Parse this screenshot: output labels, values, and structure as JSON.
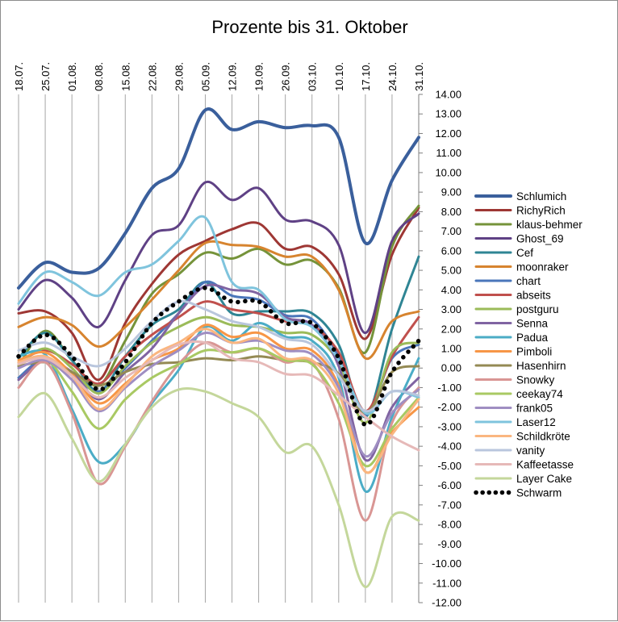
{
  "chart_data": {
    "type": "line",
    "title": "Prozente bis 31. Oktober",
    "xlabel": "",
    "ylabel": "",
    "categories": [
      "18.07.",
      "25.07.",
      "01.08.",
      "08.08.",
      "15.08.",
      "22.08.",
      "29.08.",
      "05.09.",
      "12.09.",
      "19.09.",
      "26.09.",
      "03.10.",
      "10.10.",
      "17.10.",
      "24.10.",
      "31.10."
    ],
    "y_ticks": [
      "14.00",
      "13.00",
      "12.00",
      "11.00",
      "10.00",
      "9.00",
      "8.00",
      "7.00",
      "6.00",
      "5.00",
      "4.00",
      "3.00",
      "2.00",
      "1.00",
      "0.00",
      "-1.00",
      "-2.00",
      "-3.00",
      "-4.00",
      "-5.00",
      "-6.00",
      "-7.00",
      "-8.00",
      "-9.00",
      "-10.00",
      "-11.00",
      "-12.00"
    ],
    "ylim": [
      -12,
      14
    ],
    "grid": "vertical",
    "legend_position": "right",
    "series": [
      {
        "name": "Schlumich",
        "color": "#3a5f9c",
        "width": 4,
        "values": [
          4.1,
          5.4,
          4.9,
          5.1,
          6.9,
          9.2,
          10.2,
          13.2,
          12.2,
          12.6,
          12.3,
          12.4,
          11.8,
          6.4,
          9.6,
          11.8
        ]
      },
      {
        "name": "RichyRich",
        "color": "#9e3734",
        "width": 3,
        "values": [
          2.8,
          2.9,
          1.8,
          -0.6,
          2.3,
          4.3,
          5.8,
          6.5,
          7.1,
          7.4,
          6.1,
          6.2,
          4.8,
          1.5,
          5.8,
          8.2
        ]
      },
      {
        "name": "klaus-behmer",
        "color": "#75933a",
        "width": 3,
        "values": [
          0.1,
          1.9,
          0.4,
          -0.9,
          1.4,
          3.8,
          4.8,
          5.9,
          5.6,
          6.1,
          5.3,
          5.5,
          4.1,
          0.8,
          6.2,
          8.3
        ]
      },
      {
        "name": "Ghost_69",
        "color": "#5f4185",
        "width": 3,
        "values": [
          3.0,
          4.5,
          3.6,
          2.1,
          4.5,
          6.8,
          7.3,
          9.5,
          8.6,
          9.2,
          7.6,
          7.5,
          6.3,
          1.8,
          6.5,
          7.9
        ]
      },
      {
        "name": "Cef",
        "color": "#2f8594",
        "width": 3,
        "values": [
          0.5,
          1.8,
          0.4,
          -1.2,
          0.6,
          2.2,
          3.0,
          4.4,
          2.8,
          2.9,
          2.9,
          2.8,
          1.2,
          -2.5,
          2.0,
          5.7
        ]
      },
      {
        "name": "moonraker",
        "color": "#d7842f",
        "width": 3,
        "values": [
          2.1,
          2.6,
          2.2,
          1.1,
          2.1,
          3.5,
          5.0,
          6.4,
          6.3,
          6.2,
          5.7,
          5.7,
          4.0,
          0.5,
          2.4,
          2.9
        ]
      },
      {
        "name": "chart",
        "color": "#4a76ba",
        "width": 3,
        "values": [
          -0.5,
          0.5,
          -0.3,
          -1.2,
          0.0,
          1.4,
          2.8,
          4.4,
          3.7,
          3.5,
          2.7,
          2.5,
          0.6,
          -2.4,
          0.5,
          1.2
        ]
      },
      {
        "name": "abseits",
        "color": "#c0504d",
        "width": 3,
        "values": [
          0.3,
          0.9,
          0.2,
          -0.8,
          0.6,
          1.7,
          2.6,
          3.4,
          3.0,
          2.8,
          2.4,
          2.2,
          0.8,
          -2.2,
          0.6,
          2.6
        ]
      },
      {
        "name": "postguru",
        "color": "#9bbb59",
        "width": 3,
        "values": [
          0.2,
          1.0,
          0.0,
          -1.3,
          0.1,
          1.3,
          2.1,
          2.6,
          2.2,
          2.1,
          1.8,
          1.7,
          0.3,
          -2.8,
          0.8,
          1.3
        ]
      },
      {
        "name": "Senna",
        "color": "#8064a2",
        "width": 3,
        "values": [
          -0.6,
          0.4,
          -0.2,
          -1.6,
          -0.2,
          1.0,
          2.8,
          4.2,
          4.0,
          3.8,
          2.6,
          2.2,
          0.1,
          -4.7,
          -2.0,
          -0.5
        ]
      },
      {
        "name": "Padua",
        "color": "#4bacc6",
        "width": 3,
        "values": [
          0.6,
          0.7,
          -2.1,
          -4.8,
          -3.9,
          -1.8,
          -0.1,
          2.1,
          1.4,
          2.3,
          1.6,
          1.4,
          -0.5,
          -6.3,
          -2.5,
          0.5
        ]
      },
      {
        "name": "Pimboli",
        "color": "#f79646",
        "width": 3,
        "values": [
          0.4,
          0.8,
          -0.3,
          -1.8,
          -0.8,
          0.4,
          1.0,
          2.2,
          1.6,
          1.8,
          1.0,
          0.9,
          -0.9,
          -5.3,
          -3.3,
          -2.0
        ]
      },
      {
        "name": "Hasenhirn",
        "color": "#948a54",
        "width": 3,
        "values": [
          0.1,
          0.3,
          -0.2,
          -0.9,
          -0.2,
          0.2,
          0.3,
          0.5,
          0.4,
          0.6,
          0.4,
          0.3,
          -0.3,
          -2.3,
          -0.2,
          0.1
        ]
      },
      {
        "name": "Snowky",
        "color": "#d99694",
        "width": 3,
        "values": [
          -1.0,
          0.3,
          -2.3,
          -5.9,
          -4.0,
          -1.7,
          0.2,
          1.3,
          0.8,
          1.0,
          0.3,
          0.3,
          -2.6,
          -7.8,
          -2.8,
          -1.0
        ]
      },
      {
        "name": "ceekay74",
        "color": "#a9c963",
        "width": 3,
        "values": [
          0.2,
          0.5,
          -1.2,
          -3.1,
          -1.6,
          -0.5,
          0.2,
          0.9,
          0.8,
          1.0,
          0.4,
          0.2,
          -1.8,
          -5.0,
          -3.1,
          -1.5
        ]
      },
      {
        "name": "frank05",
        "color": "#9f8ec2",
        "width": 3,
        "values": [
          0.0,
          0.4,
          -0.6,
          -2.2,
          -1.0,
          0.1,
          0.9,
          1.8,
          1.3,
          1.4,
          0.9,
          0.7,
          -1.0,
          -4.5,
          -2.3,
          -1.1
        ]
      },
      {
        "name": "Laser12",
        "color": "#7fc4dd",
        "width": 3,
        "values": [
          3.3,
          4.9,
          4.4,
          3.7,
          4.9,
          5.3,
          6.5,
          7.7,
          4.4,
          4.0,
          2.5,
          2.1,
          0.4,
          -2.3,
          -1.2,
          -1.5
        ]
      },
      {
        "name": "Schildkröte",
        "color": "#fab680",
        "width": 3,
        "values": [
          0.3,
          0.6,
          -0.4,
          -2.1,
          -0.9,
          0.6,
          1.3,
          2.0,
          1.3,
          1.5,
          0.5,
          0.4,
          -1.3,
          -5.3,
          -3.4,
          -1.6
        ]
      },
      {
        "name": "vanity",
        "color": "#b9c6dd",
        "width": 3,
        "values": [
          0.9,
          1.3,
          0.6,
          0.1,
          1.0,
          2.4,
          3.4,
          3.0,
          2.4,
          2.1,
          1.5,
          1.2,
          -0.4,
          -2.2,
          -1.2,
          -1.4
        ]
      },
      {
        "name": "Kaffeetasse",
        "color": "#e6b9b8",
        "width": 3,
        "values": [
          0.2,
          0.5,
          -0.4,
          -1.5,
          -0.5,
          0.4,
          1.2,
          1.3,
          0.5,
          0.3,
          -0.3,
          -0.4,
          -1.4,
          -2.5,
          -3.5,
          -4.2
        ]
      },
      {
        "name": "Layer Cake",
        "color": "#c4d79b",
        "width": 3,
        "values": [
          -2.5,
          -1.3,
          -3.6,
          -5.8,
          -3.9,
          -2.0,
          -1.1,
          -1.2,
          -1.8,
          -2.5,
          -4.3,
          -4.0,
          -7.0,
          -11.2,
          -7.6,
          -7.8
        ]
      },
      {
        "name": "Schwarm",
        "color": "#000000",
        "width": 5,
        "dotted": true,
        "values": [
          0.6,
          1.7,
          0.6,
          -1.1,
          0.3,
          2.3,
          3.4,
          4.1,
          3.4,
          3.4,
          2.3,
          2.3,
          0.5,
          -2.9,
          -0.2,
          1.4
        ]
      }
    ]
  }
}
